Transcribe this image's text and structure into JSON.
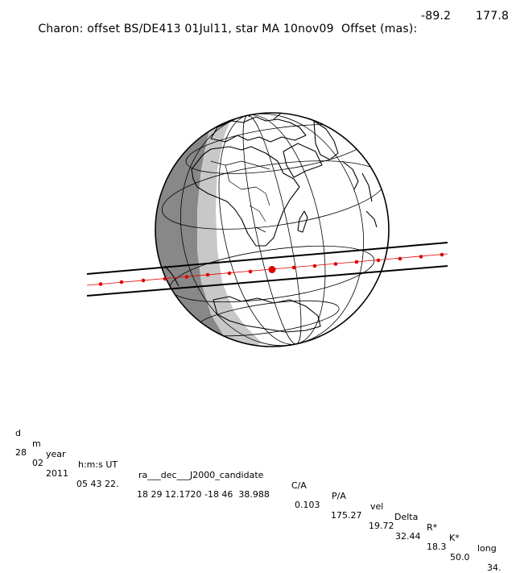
{
  "header": {
    "title": "Charon: offset BS/DE413 01Jul11, star MA 10nov09  Offset (mas):",
    "offset_ra": "-89.2",
    "offset_dec": "177.8"
  },
  "table": {
    "headers": [
      "d",
      "m",
      "year",
      "h:m:s UT",
      "ra___dec___J2000_candidate",
      "C/A",
      "P/A",
      "vel",
      "Delta",
      "R*",
      "K*",
      "long"
    ],
    "values": [
      "28",
      "02",
      "2011",
      "05 43 22.",
      "18 29 12.1720 -18 46  38.988",
      "0.103",
      "175.27",
      "19.72",
      "32.44",
      "18.3",
      "50.0",
      "34."
    ]
  },
  "map": {
    "globe_color": "#ffffff",
    "night_color": "#888888",
    "twilight_color": "#c8c8c8",
    "track_color": "#e00000"
  }
}
